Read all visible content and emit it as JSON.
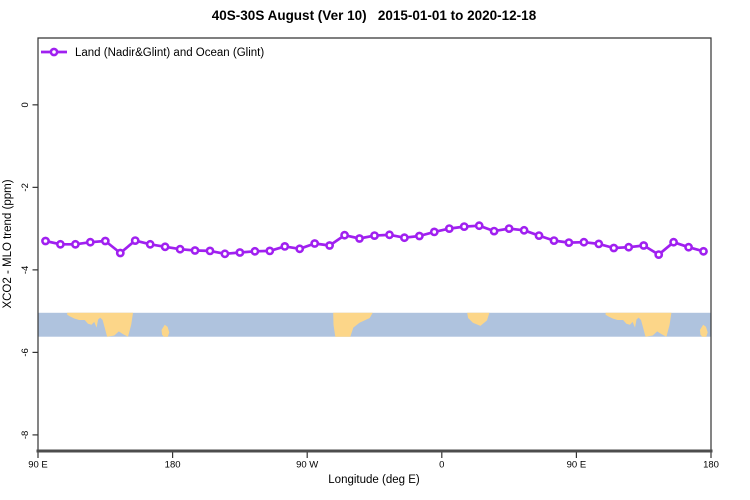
{
  "title": "40S-30S August (Ver 10)   2015-01-01 to 2020-12-18",
  "legend": {
    "label": "Land (Nadir&Glint) and Ocean (Glint)"
  },
  "axes": {
    "xlabel": "Longitude (deg E)",
    "ylabel": "XCO2 - MLO trend (ppm)",
    "x_range": {
      "min": 90,
      "max": 540
    },
    "y_range": {
      "min": -8.39,
      "max": 1.62
    },
    "x_ticks": {
      "values": [
        90,
        180,
        270,
        360,
        450,
        540
      ],
      "labels": [
        "90 E",
        "180",
        "90 W",
        "0",
        "90 E",
        "180"
      ]
    },
    "y_ticks": {
      "values": [
        0,
        -2,
        -4,
        -6,
        -8
      ],
      "labels": [
        "0",
        "-2",
        "-4",
        "-6",
        "-8"
      ]
    }
  },
  "colors": {
    "series": "#a020f0",
    "marker_fill": "#ffffff",
    "ocean": "#afc3de",
    "land": "#fcd689",
    "axis": "#333333",
    "axis_heavy": "#4d4d4d",
    "text": "#000000"
  },
  "chart_data": {
    "type": "line",
    "title": "40S-30S August (Ver 10)   2015-01-01 to 2020-12-18",
    "xlabel": "Longitude (deg E)",
    "ylabel": "XCO2 - MLO trend (ppm)",
    "xlim": [
      90,
      540
    ],
    "ylim": [
      -8.39,
      1.62
    ],
    "grid": false,
    "legend_position": "top-left-inside",
    "x": [
      95,
      105,
      115,
      125,
      135,
      145,
      155,
      165,
      175,
      185,
      195,
      205,
      215,
      225,
      235,
      245,
      255,
      265,
      275,
      285,
      295,
      305,
      315,
      325,
      335,
      345,
      355,
      365,
      375,
      385,
      395,
      405,
      415,
      425,
      435,
      445,
      455,
      465,
      475,
      485,
      495,
      505,
      515,
      525,
      535
    ],
    "series": [
      {
        "name": "Land (Nadir&Glint) and Ocean (Glint)",
        "color": "#a020f0",
        "marker": "open-circle",
        "values": [
          -3.3,
          -3.38,
          -3.38,
          -3.33,
          -3.3,
          -3.59,
          -3.29,
          -3.38,
          -3.44,
          -3.5,
          -3.53,
          -3.54,
          -3.61,
          -3.58,
          -3.55,
          -3.54,
          -3.43,
          -3.49,
          -3.36,
          -3.41,
          -3.16,
          -3.24,
          -3.17,
          -3.15,
          -3.22,
          -3.18,
          -3.08,
          -3.0,
          -2.95,
          -2.93,
          -3.06,
          -3.0,
          -3.04,
          -3.17,
          -3.29,
          -3.34,
          -3.33,
          -3.37,
          -3.47,
          -3.45,
          -3.41,
          -3.63,
          -3.33,
          -3.45,
          -3.55
        ]
      }
    ],
    "map_band": {
      "description": "40S-30S latitude strip map: ocean with land patches, longitude wrapped every 360 deg",
      "y_top": -5.04,
      "y_bottom": -5.62,
      "repeat_offsets": [
        0,
        360
      ],
      "land_patches": [
        {
          "name": "australia",
          "points": [
            [
              109.5,
              0
            ],
            [
              153.5,
              0
            ],
            [
              152.3,
              0.5
            ],
            [
              150.2,
              1
            ],
            [
              147,
              0.9
            ],
            [
              144,
              0.78
            ],
            [
              141,
              0.95
            ],
            [
              136.2,
              1
            ],
            [
              134.6,
              0.62
            ],
            [
              133.2,
              0.3
            ],
            [
              131.6,
              0.2
            ],
            [
              130.2,
              0.28
            ],
            [
              129.2,
              0.62
            ],
            [
              127.6,
              0.38
            ],
            [
              125.8,
              0.5
            ],
            [
              123.4,
              0.46
            ],
            [
              121.2,
              0.3
            ],
            [
              117.5,
              0.3
            ],
            [
              114.3,
              0.24
            ],
            [
              111.3,
              0.15
            ],
            [
              109.5,
              0.08
            ]
          ]
        },
        {
          "name": "new-zealand",
          "points": [
            [
              172.6,
              0.72
            ],
            [
              174.8,
              0.5
            ],
            [
              176.6,
              0.58
            ],
            [
              177.8,
              0.82
            ],
            [
              176.8,
              1
            ],
            [
              174.2,
              1
            ],
            [
              173,
              0.92
            ]
          ]
        },
        {
          "name": "south-america",
          "points": [
            [
              287.4,
              0
            ],
            [
              313.8,
              0
            ],
            [
              311.8,
              0.22
            ],
            [
              305,
              0.42
            ],
            [
              300.8,
              0.62
            ],
            [
              298.8,
              1
            ],
            [
              288.8,
              1
            ],
            [
              287.6,
              0.5
            ]
          ]
        },
        {
          "name": "south-africa",
          "points": [
            [
              377,
              0
            ],
            [
              391.8,
              0
            ],
            [
              390.2,
              0.32
            ],
            [
              385.8,
              0.55
            ],
            [
              380.8,
              0.42
            ],
            [
              377.6,
              0.22
            ]
          ]
        }
      ]
    }
  }
}
